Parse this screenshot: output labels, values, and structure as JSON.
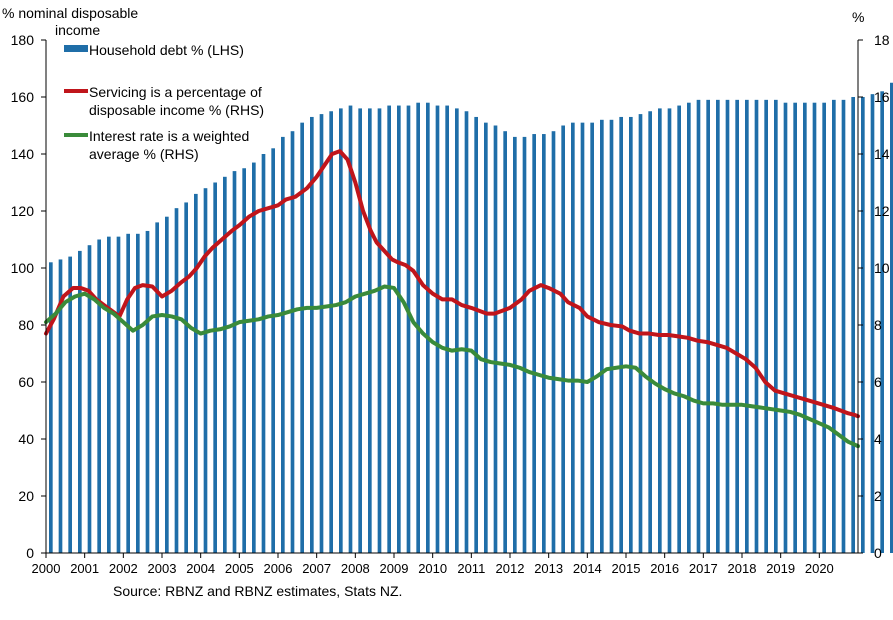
{
  "chart_data": {
    "type": "bar+line",
    "left_axis_title": "% nominal disposable income",
    "left_axis_title_lines": [
      "% nominal disposable",
      "income"
    ],
    "right_axis_title": "%",
    "source": "Source: RBNZ and RBNZ estimates, Stats NZ.",
    "x_tick_labels": [
      "2000",
      "2001",
      "2002",
      "2003",
      "2004",
      "2005",
      "2006",
      "2007",
      "2008",
      "2009",
      "2010",
      "2011",
      "2012",
      "2013",
      "2014",
      "2015",
      "2016",
      "2017",
      "2018",
      "2019",
      "2020"
    ],
    "x_start": 2000.0,
    "x_end": 2021.0,
    "left_axis": {
      "min": 0,
      "max": 180,
      "step": 20,
      "ticks": [
        "0",
        "20",
        "40",
        "60",
        "80",
        "100",
        "120",
        "140",
        "160",
        "180"
      ]
    },
    "right_axis": {
      "min": 0,
      "max": 18,
      "step": 2,
      "ticks": [
        "0",
        "2",
        "4",
        "6",
        "8",
        "10",
        "12",
        "14",
        "16",
        "18"
      ]
    },
    "legend": [
      {
        "label": "Household debt % (LHS)",
        "kind": "bar",
        "color": "#1f6ea8"
      },
      {
        "label": "Servicing is a percentage of disposable income % (RHS)",
        "lines": [
          "Servicing is a percentage of",
          "disposable income % (RHS)"
        ],
        "kind": "line",
        "color": "#c0151b"
      },
      {
        "label": "Interest rate is a weighted average % (RHS)",
        "lines": [
          "Interest rate is a weighted",
          "average % (RHS)"
        ],
        "kind": "line",
        "color": "#3a8b3a"
      }
    ],
    "series": [
      {
        "name": "Household debt % (LHS)",
        "axis": "left",
        "type": "bar",
        "color": "#1f6ea8",
        "start": 2000.0,
        "step": 0.25,
        "values": [
          102,
          103,
          104,
          106,
          108,
          110,
          111,
          111,
          112,
          112,
          113,
          116,
          118,
          121,
          123,
          126,
          128,
          130,
          132,
          134,
          135,
          137,
          140,
          142,
          146,
          148,
          151,
          153,
          154,
          155,
          156,
          157,
          156,
          156,
          156,
          157,
          157,
          157,
          158,
          158,
          157,
          157,
          156,
          155,
          153,
          151,
          150,
          148,
          146,
          146,
          147,
          147,
          148,
          150,
          151,
          151,
          151,
          152,
          152,
          153,
          153,
          154,
          155,
          156,
          156,
          157,
          158,
          159,
          159,
          159,
          159,
          159,
          159,
          159,
          159,
          159,
          158,
          158,
          158,
          158,
          158,
          159,
          159,
          160,
          160,
          161,
          162,
          165
        ]
      },
      {
        "name": "Servicing is a percentage of disposable income % (RHS)",
        "axis": "right",
        "type": "line",
        "color": "#c0151b",
        "x": [
          2000.0,
          2000.2,
          2000.45,
          2000.7,
          2000.9,
          2001.1,
          2001.3,
          2001.5,
          2001.7,
          2001.9,
          2002.1,
          2002.3,
          2002.5,
          2002.75,
          2003.0,
          2003.25,
          2003.5,
          2003.7,
          2003.9,
          2004.1,
          2004.3,
          2004.55,
          2004.8,
          2005.0,
          2005.25,
          2005.5,
          2005.75,
          2006.0,
          2006.2,
          2006.45,
          2006.75,
          2007.0,
          2007.2,
          2007.4,
          2007.6,
          2007.8,
          2008.0,
          2008.2,
          2008.4,
          2008.55,
          2008.75,
          2008.95,
          2009.1,
          2009.3,
          2009.5,
          2009.75,
          2010.0,
          2010.25,
          2010.5,
          2010.75,
          2011.0,
          2011.2,
          2011.4,
          2011.6,
          2011.8,
          2012.0,
          2012.3,
          2012.5,
          2012.8,
          2013.0,
          2013.3,
          2013.5,
          2013.8,
          2014.0,
          2014.3,
          2014.6,
          2014.9,
          2015.1,
          2015.35,
          2015.6,
          2015.85,
          2016.1,
          2016.35,
          2016.6,
          2016.85,
          2017.1,
          2017.35,
          2017.6,
          2017.85,
          2018.1,
          2018.35,
          2018.6,
          2018.85,
          2019.1,
          2019.35,
          2019.6,
          2019.85,
          2020.1,
          2020.35,
          2020.55,
          2020.75,
          2020.9,
          2021.0
        ],
        "values": [
          7.7,
          8.2,
          9.0,
          9.3,
          9.3,
          9.2,
          8.9,
          8.7,
          8.5,
          8.3,
          8.9,
          9.3,
          9.4,
          9.35,
          9.0,
          9.2,
          9.5,
          9.7,
          10.0,
          10.4,
          10.7,
          11.0,
          11.3,
          11.5,
          11.8,
          12.0,
          12.1,
          12.2,
          12.4,
          12.5,
          12.8,
          13.2,
          13.6,
          14.0,
          14.1,
          13.8,
          13.0,
          12.0,
          11.3,
          10.9,
          10.6,
          10.3,
          10.2,
          10.1,
          9.9,
          9.4,
          9.1,
          8.9,
          8.9,
          8.7,
          8.6,
          8.5,
          8.4,
          8.4,
          8.5,
          8.6,
          8.9,
          9.2,
          9.4,
          9.3,
          9.1,
          8.8,
          8.6,
          8.3,
          8.1,
          8.0,
          7.95,
          7.8,
          7.7,
          7.7,
          7.65,
          7.65,
          7.6,
          7.55,
          7.45,
          7.4,
          7.3,
          7.2,
          7.0,
          6.8,
          6.5,
          6.0,
          5.7,
          5.6,
          5.5,
          5.4,
          5.3,
          5.2,
          5.1,
          5.0,
          4.9,
          4.85,
          4.8
        ]
      },
      {
        "name": "Interest rate is a weighted average % (RHS)",
        "axis": "right",
        "type": "line",
        "color": "#3a8b3a",
        "x": [
          2000.0,
          2000.25,
          2000.5,
          2000.75,
          2001.0,
          2001.25,
          2001.5,
          2001.75,
          2002.0,
          2002.25,
          2002.5,
          2002.75,
          2003.0,
          2003.25,
          2003.5,
          2003.75,
          2004.0,
          2004.25,
          2004.5,
          2004.75,
          2005.0,
          2005.25,
          2005.5,
          2005.75,
          2006.0,
          2006.25,
          2006.5,
          2006.75,
          2007.0,
          2007.25,
          2007.5,
          2007.75,
          2008.0,
          2008.25,
          2008.5,
          2008.75,
          2009.0,
          2009.25,
          2009.5,
          2009.75,
          2010.0,
          2010.25,
          2010.5,
          2010.75,
          2011.0,
          2011.25,
          2011.5,
          2011.75,
          2012.0,
          2012.25,
          2012.5,
          2012.75,
          2013.0,
          2013.25,
          2013.5,
          2013.75,
          2014.0,
          2014.25,
          2014.5,
          2014.75,
          2015.0,
          2015.25,
          2015.5,
          2015.75,
          2016.0,
          2016.25,
          2016.5,
          2016.75,
          2017.0,
          2017.25,
          2017.5,
          2017.75,
          2018.0,
          2018.25,
          2018.5,
          2018.75,
          2019.0,
          2019.25,
          2019.5,
          2019.75,
          2020.0,
          2020.25,
          2020.5,
          2020.75,
          2021.0
        ],
        "values": [
          8.1,
          8.4,
          8.8,
          9.0,
          9.1,
          8.9,
          8.6,
          8.4,
          8.1,
          7.8,
          8.0,
          8.3,
          8.35,
          8.3,
          8.2,
          7.9,
          7.7,
          7.8,
          7.85,
          7.95,
          8.1,
          8.15,
          8.2,
          8.3,
          8.35,
          8.45,
          8.55,
          8.6,
          8.6,
          8.65,
          8.7,
          8.8,
          9.0,
          9.1,
          9.2,
          9.35,
          9.3,
          8.8,
          8.1,
          7.7,
          7.4,
          7.2,
          7.1,
          7.15,
          7.1,
          6.8,
          6.7,
          6.65,
          6.6,
          6.5,
          6.35,
          6.25,
          6.15,
          6.1,
          6.05,
          6.05,
          6.0,
          6.2,
          6.45,
          6.5,
          6.55,
          6.5,
          6.2,
          5.95,
          5.75,
          5.6,
          5.5,
          5.35,
          5.25,
          5.25,
          5.2,
          5.2,
          5.2,
          5.15,
          5.1,
          5.05,
          5.0,
          4.95,
          4.85,
          4.7,
          4.55,
          4.4,
          4.15,
          3.9,
          3.75
        ]
      }
    ]
  }
}
